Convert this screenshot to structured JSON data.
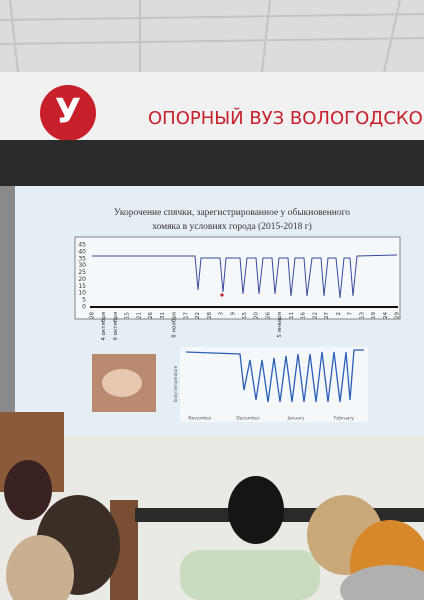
{
  "banner": {
    "text": "ОПОРНЫЙ ВУЗ ВОЛОГОДСКОЙ"
  },
  "slide": {
    "title": [
      "Укорочение спячки, зарегистрированное у обыкновенного",
      "хомяка в условиях города (2015-2018 г)"
    ],
    "chart1": {
      "yticks": [
        "45",
        "40",
        "35",
        "30",
        "25",
        "20",
        "15",
        "10",
        "5",
        "0"
      ],
      "xlabels": [
        "28",
        "4 октября",
        "9 октября",
        "15",
        "21",
        "26",
        "31",
        "8 ноября",
        "17",
        "22",
        "28",
        "3",
        "9",
        "15",
        "20",
        "26",
        "5 января",
        "11",
        "16",
        "22",
        "27",
        "2",
        "7",
        "13",
        "19",
        "24",
        "29"
      ]
    },
    "chart2": {
      "ylabel": "body temperature",
      "xlabels": [
        "November",
        "December",
        "January",
        "February"
      ]
    }
  }
}
